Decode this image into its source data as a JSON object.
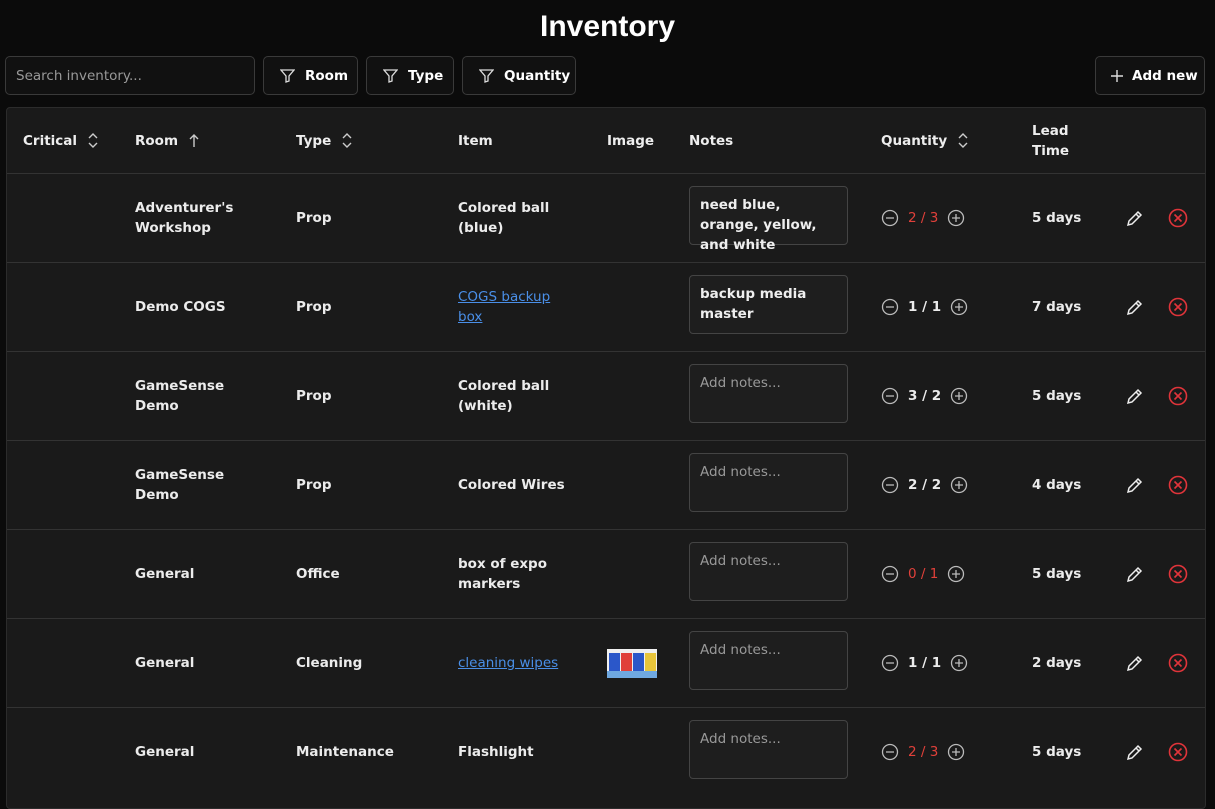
{
  "header": {
    "title": "Inventory"
  },
  "toolbar": {
    "search_placeholder": "Search inventory...",
    "filters": [
      "Room",
      "Type",
      "Quantity"
    ],
    "add_button": "Add new"
  },
  "table": {
    "columns": [
      "Critical",
      "Room",
      "Type",
      "Item",
      "Image",
      "Notes",
      "Quantity",
      "Lead Time"
    ],
    "notes_placeholder": "Add notes...",
    "rows": [
      {
        "room": "Adventurer's Workshop",
        "type": "Prop",
        "item": "Colored ball (blue)",
        "item_link": false,
        "image": false,
        "notes": "need blue, orange, yellow, and white",
        "quantity": "2 / 3",
        "low": true,
        "lead_time": "5 days"
      },
      {
        "room": "Demo COGS",
        "type": "Prop",
        "item": "COGS backup box",
        "item_link": true,
        "image": false,
        "notes": "backup media master",
        "quantity": "1 / 1",
        "low": false,
        "lead_time": "7 days"
      },
      {
        "room": "GameSense Demo",
        "type": "Prop",
        "item": "Colored ball (white)",
        "item_link": false,
        "image": false,
        "notes": null,
        "quantity": "3 / 2",
        "low": false,
        "lead_time": "5 days"
      },
      {
        "room": "GameSense Demo",
        "type": "Prop",
        "item": "Colored Wires",
        "item_link": false,
        "image": false,
        "notes": null,
        "quantity": "2 / 2",
        "low": false,
        "lead_time": "4 days"
      },
      {
        "room": "General",
        "type": "Office",
        "item": "box of expo markers",
        "item_link": false,
        "image": false,
        "notes": null,
        "quantity": "0 / 1",
        "low": true,
        "lead_time": "5 days"
      },
      {
        "room": "General",
        "type": "Cleaning",
        "item": "cleaning wipes",
        "item_link": true,
        "image": true,
        "notes": null,
        "quantity": "1 / 1",
        "low": false,
        "lead_time": "2 days"
      },
      {
        "room": "General",
        "type": "Maintenance",
        "item": "Flashlight",
        "item_link": false,
        "image": false,
        "notes": null,
        "quantity": "2 / 3",
        "low": true,
        "lead_time": "5 days"
      }
    ]
  }
}
